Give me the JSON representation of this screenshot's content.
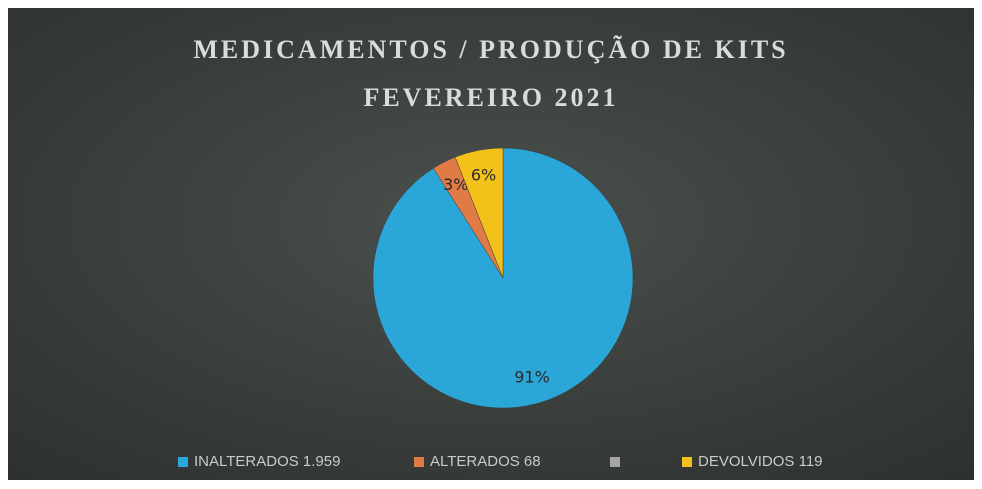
{
  "chart_data": {
    "type": "pie",
    "title": [
      "MEDICAMENTOS / PRODUÇÃO DE KITS",
      "FEVEREIRO 2021"
    ],
    "categories": [
      "INALTERADOS 1.959",
      "ALTERADOS 68",
      null,
      "DEVOLVIDOS 119"
    ],
    "values": [
      91,
      3,
      0,
      6
    ],
    "value_labels": [
      "91%",
      "3%",
      null,
      "6%"
    ],
    "colors": [
      "#2aa7d8",
      "#e07b45",
      "#a5a5a5",
      "#f2c21a"
    ],
    "legend": "bottom"
  }
}
